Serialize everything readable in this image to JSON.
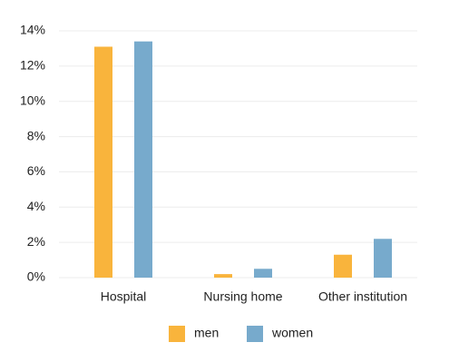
{
  "chart_data": {
    "type": "bar",
    "categories": [
      "Hospital",
      "Nursing home",
      "Other institution"
    ],
    "series": [
      {
        "name": "men",
        "color": "#f9b43c",
        "values": [
          13.1,
          0.2,
          1.3
        ]
      },
      {
        "name": "women",
        "color": "#77aacc",
        "values": [
          13.4,
          0.5,
          2.2
        ]
      }
    ],
    "ylim": [
      0,
      14
    ],
    "yticks": [
      {
        "value": 0,
        "label": "0%"
      },
      {
        "value": 2,
        "label": "2%"
      },
      {
        "value": 4,
        "label": "4%"
      },
      {
        "value": 6,
        "label": "6%"
      },
      {
        "value": 8,
        "label": "8%"
      },
      {
        "value": 10,
        "label": "10%"
      },
      {
        "value": 12,
        "label": "12%"
      },
      {
        "value": 14,
        "label": "14%"
      }
    ],
    "grid": true,
    "legend": "bottom"
  }
}
